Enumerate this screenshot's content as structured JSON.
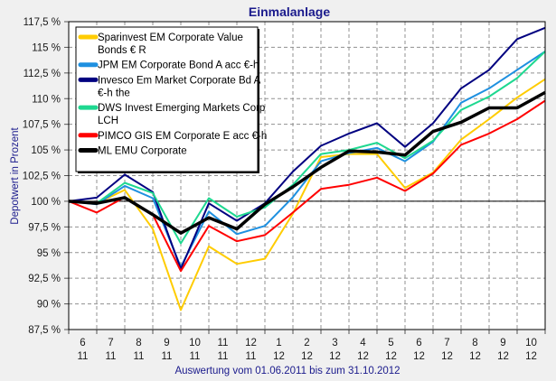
{
  "chart_data": {
    "type": "line",
    "title": "Einmalanlage",
    "xlabel": "Auswertung vom 01.06.2011 bis zum 31.10.2012",
    "ylabel": "Depotwert in Prozent",
    "ylim": [
      87.5,
      117.5
    ],
    "yticks": [
      87.5,
      90,
      92.5,
      95,
      97.5,
      100,
      102.5,
      105,
      107.5,
      110,
      112.5,
      115,
      117.5
    ],
    "ytick_labels": [
      "87,5 %",
      "90 %",
      "92,5 %",
      "95 %",
      "97,5 %",
      "100 %",
      "102,5 %",
      "105 %",
      "107,5 %",
      "110 %",
      "112,5 %",
      "115 %",
      "117,5 %"
    ],
    "x_month_labels": [
      {
        "month": "6",
        "year": "11"
      },
      {
        "month": "7",
        "year": "11"
      },
      {
        "month": "8",
        "year": "11"
      },
      {
        "month": "9",
        "year": "11"
      },
      {
        "month": "10",
        "year": "11"
      },
      {
        "month": "11",
        "year": "11"
      },
      {
        "month": "12",
        "year": "11"
      },
      {
        "month": "1",
        "year": "12"
      },
      {
        "month": "2",
        "year": "12"
      },
      {
        "month": "3",
        "year": "12"
      },
      {
        "month": "4",
        "year": "12"
      },
      {
        "month": "5",
        "year": "12"
      },
      {
        "month": "6",
        "year": "12"
      },
      {
        "month": "7",
        "year": "12"
      },
      {
        "month": "8",
        "year": "12"
      },
      {
        "month": "9",
        "year": "12"
      },
      {
        "month": "10",
        "year": "12"
      }
    ],
    "reference_line": 100,
    "grid": true,
    "legend_position": "top-left",
    "series": [
      {
        "name": "Sparinvest EM Corporate Value Bonds € R",
        "legend_lines": [
          "Sparinvest EM Corporate Value",
          "Bonds € R"
        ],
        "color": "#ffcc00",
        "values": [
          100,
          99.8,
          101.1,
          97.3,
          89.4,
          95.6,
          93.9,
          94.4,
          98.8,
          104.3,
          104.6,
          104.6,
          101.3,
          102.8,
          106.0,
          108.0,
          110.1,
          111.9
        ]
      },
      {
        "name": "JPM EM Corporate Bond A acc €-h",
        "legend_lines": [
          "JPM EM Corporate Bond A acc €-h"
        ],
        "color": "#1e90e0",
        "values": [
          100,
          99.7,
          101.5,
          100.3,
          93.6,
          99.0,
          96.8,
          97.6,
          100.4,
          103.9,
          104.7,
          105.2,
          103.9,
          105.8,
          109.6,
          111.0,
          112.8,
          114.6
        ]
      },
      {
        "name": "Invesco Em Market Corporate Bd A €-h the",
        "legend_lines": [
          "Invesco Em Market Corporate Bd A",
          "€-h the"
        ],
        "color": "#000080",
        "values": [
          100,
          100.35,
          102.6,
          100.9,
          93.4,
          99.8,
          98.1,
          99.8,
          102.9,
          105.4,
          106.6,
          107.6,
          105.3,
          107.6,
          111.0,
          112.8,
          115.8,
          116.9
        ]
      },
      {
        "name": "DWS Invest Emerging Markets Corp LCH",
        "legend_lines": [
          "DWS Invest Emerging Markets Corp",
          "LCH"
        ],
        "color": "#1ed890",
        "values": [
          100,
          99.8,
          101.8,
          100.8,
          95.9,
          100.3,
          98.5,
          99.4,
          101.6,
          104.6,
          105.0,
          105.7,
          104.2,
          105.9,
          108.9,
          110.2,
          112.0,
          114.6
        ]
      },
      {
        "name": "PIMCO GIS EM Corporate E acc €-h",
        "legend_lines": [
          "PIMCO GIS EM Corporate E acc €-h"
        ],
        "color": "#ff0000",
        "values": [
          100,
          98.9,
          100.4,
          98.7,
          93.2,
          97.6,
          96.1,
          96.7,
          98.9,
          101.2,
          101.6,
          102.3,
          101.0,
          102.7,
          105.5,
          106.6,
          108.0,
          109.8
        ]
      },
      {
        "name": "ML EMU Corporate",
        "legend_lines": [
          "ML EMU Corporate"
        ],
        "color": "#000000",
        "bold": true,
        "values": [
          100,
          99.8,
          100.35,
          98.7,
          96.9,
          98.4,
          97.3,
          99.7,
          101.4,
          103.3,
          104.9,
          104.8,
          104.5,
          106.8,
          107.7,
          109.1,
          109.1,
          110.6
        ]
      }
    ]
  }
}
